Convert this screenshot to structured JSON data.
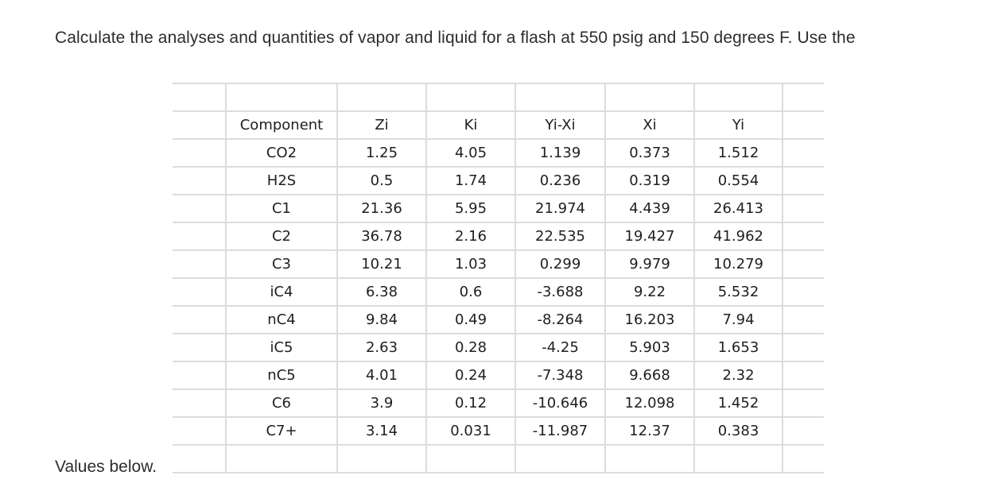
{
  "question": {
    "text_line1": "Calculate the analyses and quantities of vapor and liquid for a flash at 550 psig and 150 degrees F. Use the",
    "text_line2": "Values below."
  },
  "table": {
    "headers": [
      "Component",
      "Zi",
      "Ki",
      "Yi-Xi",
      "Xi",
      "Yi"
    ],
    "rows": [
      [
        "CO2",
        "1.25",
        "4.05",
        "1.139",
        "0.373",
        "1.512"
      ],
      [
        "H2S",
        "0.5",
        "1.74",
        "0.236",
        "0.319",
        "0.554"
      ],
      [
        "C1",
        "21.36",
        "5.95",
        "21.974",
        "4.439",
        "26.413"
      ],
      [
        "C2",
        "36.78",
        "2.16",
        "22.535",
        "19.427",
        "41.962"
      ],
      [
        "C3",
        "10.21",
        "1.03",
        "0.299",
        "9.979",
        "10.279"
      ],
      [
        "iC4",
        "6.38",
        "0.6",
        "-3.688",
        "9.22",
        "5.532"
      ],
      [
        "nC4",
        "9.84",
        "0.49",
        "-8.264",
        "16.203",
        "7.94"
      ],
      [
        "iC5",
        "2.63",
        "0.28",
        "-4.25",
        "5.903",
        "1.653"
      ],
      [
        "nC5",
        "4.01",
        "0.24",
        "-7.348",
        "9.668",
        "2.32"
      ],
      [
        "C6",
        "3.9",
        "0.12",
        "-10.646",
        "12.098",
        "1.452"
      ],
      [
        "C7+",
        "3.14",
        "0.031",
        "-11.987",
        "12.37",
        "0.383"
      ]
    ]
  }
}
